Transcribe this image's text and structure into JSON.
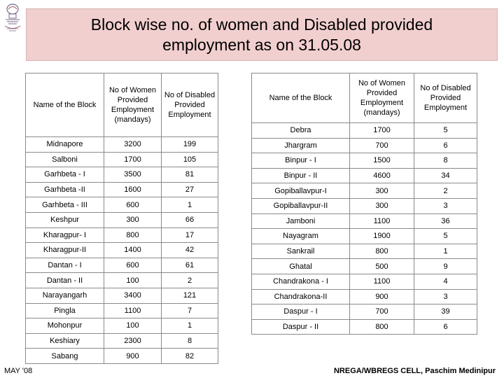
{
  "title": {
    "line1": "Block wise no. of women and Disabled provided",
    "line2": "employment as on 31.05.08"
  },
  "left_table": {
    "headers": [
      "Name of the Block",
      "No of Women Provided Employment (mandays)",
      "No of Disabled Provided Employment"
    ],
    "rows": [
      [
        "Midnapore",
        "3200",
        "199"
      ],
      [
        "Salboni",
        "1700",
        "105"
      ],
      [
        "Garhbeta - I",
        "3500",
        "81"
      ],
      [
        "Garhbeta -II",
        "1600",
        "27"
      ],
      [
        "Garhbeta - III",
        "600",
        "1"
      ],
      [
        "Keshpur",
        "300",
        "66"
      ],
      [
        "Kharagpur- I",
        "800",
        "17"
      ],
      [
        "Kharagpur-II",
        "1400",
        "42"
      ],
      [
        "Dantan - I",
        "600",
        "61"
      ],
      [
        "Dantan - II",
        "100",
        "2"
      ],
      [
        "Narayangarh",
        "3400",
        "121"
      ],
      [
        "Pingla",
        "1100",
        "7"
      ],
      [
        "Mohonpur",
        "100",
        "1"
      ],
      [
        "Keshiary",
        "2300",
        "8"
      ],
      [
        "Sabang",
        "900",
        "82"
      ]
    ]
  },
  "right_table": {
    "headers": [
      "Name of the Block",
      "No of Women Provided Employment (mandays)",
      "No of Disabled Provided Employment"
    ],
    "rows": [
      [
        "Debra",
        "1700",
        "5"
      ],
      [
        "Jhargram",
        "700",
        "6"
      ],
      [
        "Binpur - I",
        "1500",
        "8"
      ],
      [
        "Binpur - II",
        "4600",
        "34"
      ],
      [
        "Gopiballavpur-I",
        "300",
        "2"
      ],
      [
        "Gopiballavpur-II",
        "300",
        "3"
      ],
      [
        "Jamboni",
        "1100",
        "36"
      ],
      [
        "Nayagram",
        "1900",
        "5"
      ],
      [
        "Sankrail",
        "800",
        "1"
      ],
      [
        "Ghatal",
        "500",
        "9"
      ],
      [
        "Chandrakona - I",
        "1100",
        "4"
      ],
      [
        "Chandrakona-II",
        "900",
        "3"
      ],
      [
        "Daspur - I",
        "700",
        "39"
      ],
      [
        "Daspur - II",
        "800",
        "6"
      ]
    ]
  },
  "footer": {
    "left": "MAY '08",
    "right": "NREGA/WBREGS CELL, Paschim Medinipur"
  },
  "colors": {
    "title_bg": "#f2cfcf",
    "border": "#8a8a8a"
  },
  "icons": {
    "logo": "government-emblem-icon"
  }
}
